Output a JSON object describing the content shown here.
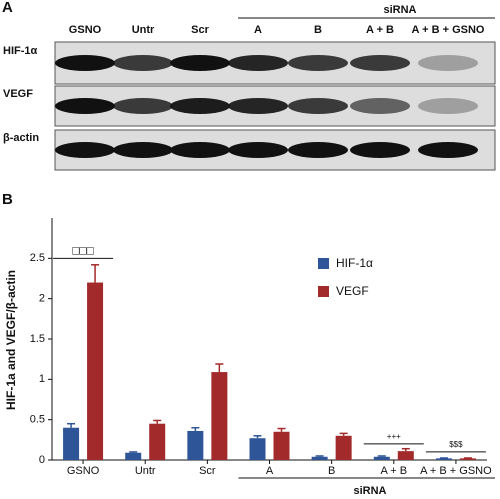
{
  "panel_a": {
    "label": "A",
    "group_label": "siRNA",
    "lanes": [
      "GSNO",
      "Untr",
      "Scr",
      "A",
      "B",
      "A + B",
      "A + B + GSNO"
    ],
    "rows": [
      "HIF-1α",
      "VEGF",
      "β-actin"
    ]
  },
  "panel_b_label": "B",
  "chart_data": {
    "type": "bar",
    "y_label": "HIF-1a and VEGF/β-actin",
    "categories": [
      "GSNO",
      "Untr",
      "Scr",
      "A",
      "B",
      "A + B",
      "A + B + GSNO"
    ],
    "series": [
      {
        "name": "HIF-1α",
        "color": "#2e5597",
        "values": [
          0.4,
          0.09,
          0.36,
          0.27,
          0.04,
          0.04,
          0.02
        ],
        "errors": [
          0.05,
          0.01,
          0.04,
          0.03,
          0.01,
          0.01,
          0.005
        ]
      },
      {
        "name": "VEGF",
        "color": "#a32a2a",
        "values": [
          2.2,
          0.45,
          1.09,
          0.35,
          0.3,
          0.11,
          0.02
        ],
        "errors": [
          0.22,
          0.04,
          0.1,
          0.04,
          0.03,
          0.03,
          0.005
        ]
      }
    ],
    "ylim": [
      0,
      3
    ],
    "yticks": [
      0,
      0.5,
      1,
      1.5,
      2,
      2.5
    ],
    "x_group_label": "siRNA",
    "annotations": [
      "□□□",
      "+++",
      "$$$"
    ]
  }
}
